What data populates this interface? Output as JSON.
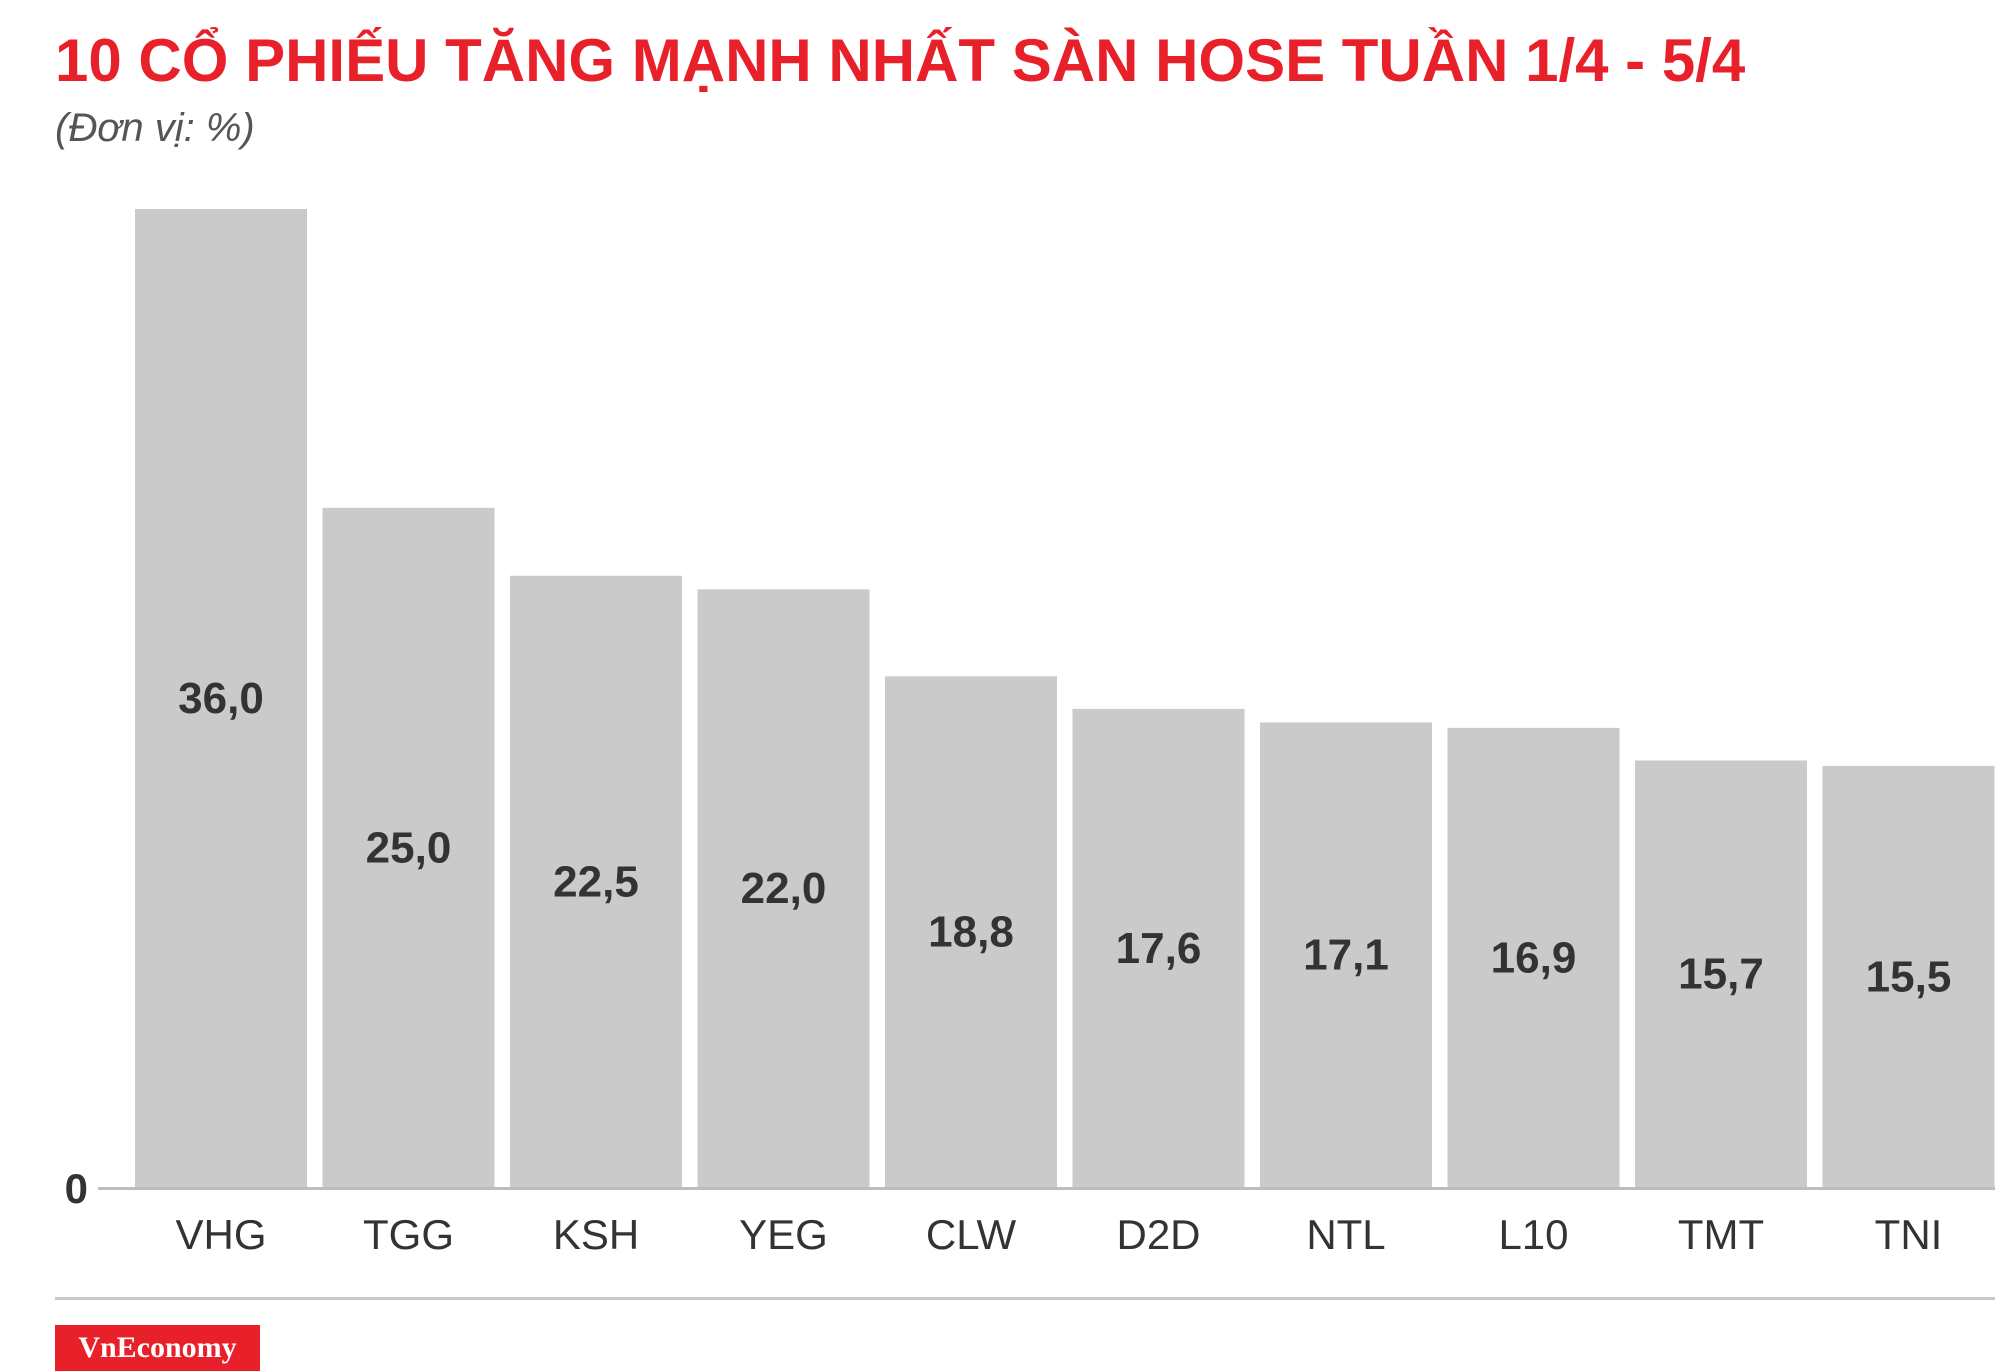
{
  "title": "10 CỔ PHIẾU TĂNG MẠNH NHẤT SÀN HOSE TUẦN 1/4 - 5/4",
  "unit_label": "(Đơn vị: %)",
  "brand": "VnEconomy",
  "colors": {
    "accent": "#e8202a",
    "bar": "#cbcacb",
    "label": "#333333",
    "axis": "#bdbdbd"
  },
  "chart_data": {
    "type": "bar",
    "categories": [
      "VHG",
      "TGG",
      "KSH",
      "YEG",
      "CLW",
      "D2D",
      "NTL",
      "L10",
      "TMT",
      "TNI"
    ],
    "values": [
      36.0,
      25.0,
      22.5,
      22.0,
      18.8,
      17.6,
      17.1,
      16.9,
      15.7,
      15.5
    ],
    "value_labels": [
      "36,0",
      "25,0",
      "22,5",
      "22,0",
      "18,8",
      "17,6",
      "17,1",
      "16,9",
      "15,7",
      "15,5"
    ],
    "y_tick_labels": [
      "0"
    ],
    "title": "10 CỔ PHIẾU TĂNG MẠNH NHẤT SÀN HOSE TUẦN 1/4 - 5/4",
    "xlabel": "",
    "ylabel": "",
    "ylim": [
      0,
      36
    ],
    "grid": false,
    "legend": "none"
  }
}
